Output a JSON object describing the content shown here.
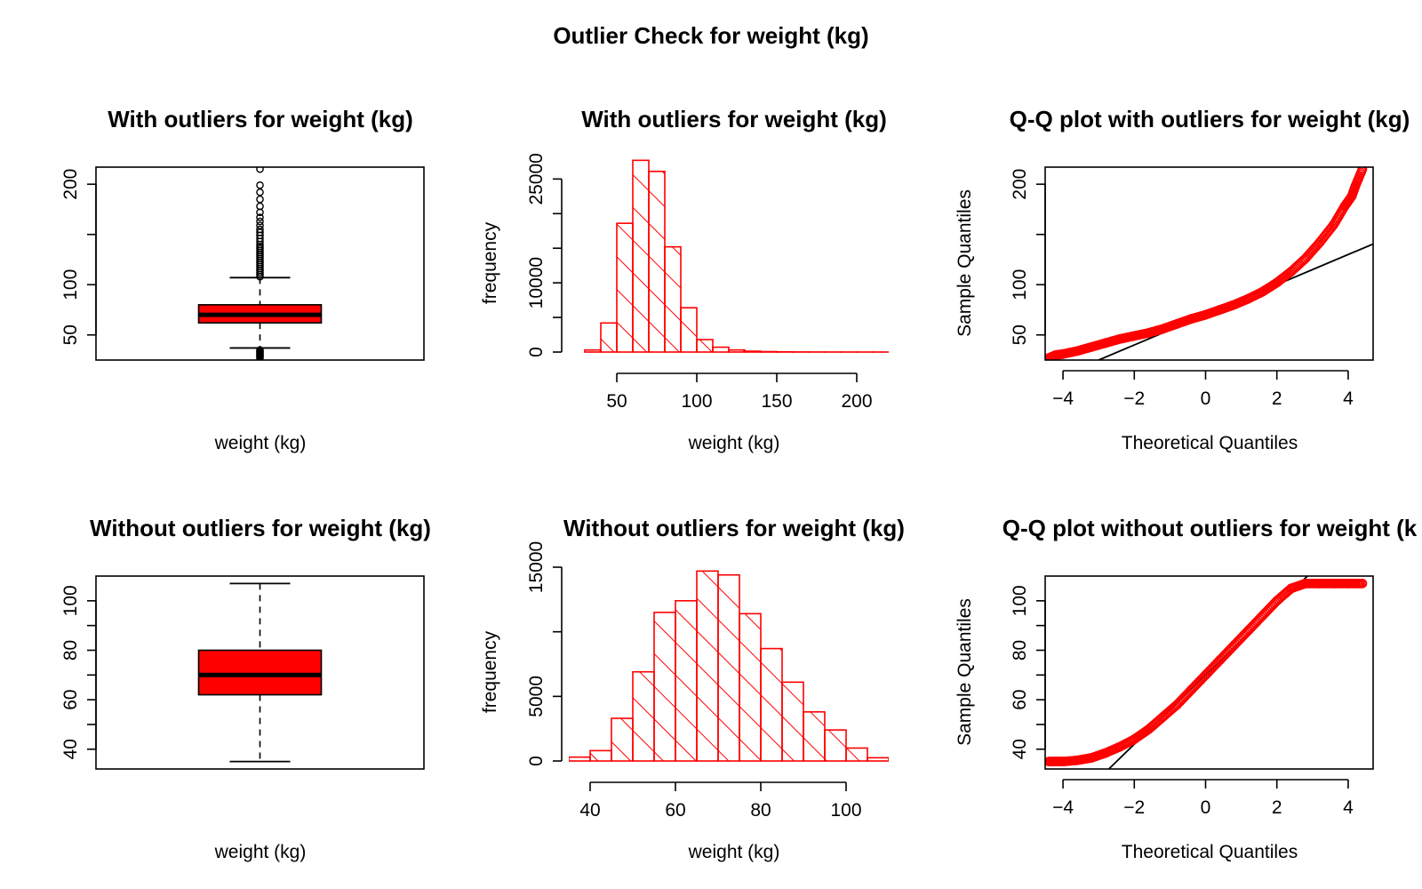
{
  "page_title": "Outlier Check for  weight (kg)",
  "colors": {
    "accent": "#ff0000",
    "line": "#000000",
    "background": "#ffffff"
  },
  "chart_data": [
    {
      "id": "box_with",
      "type": "boxplot",
      "title": "With outliers for weight (kg)",
      "xlabel": "weight (kg)",
      "ylabel": "",
      "ylim": [
        25,
        217
      ],
      "yticks": [
        50,
        100,
        150,
        200
      ],
      "ytick_labels": [
        "50",
        "100",
        "",
        "200"
      ],
      "stats": {
        "whisker_low": 37,
        "q1": 62,
        "median": 70,
        "q3": 80,
        "whisker_high": 107
      },
      "outliers_high": [
        108,
        110,
        112,
        114,
        116,
        118,
        120,
        122,
        124,
        126,
        128,
        130,
        132,
        134,
        136,
        138,
        140,
        143,
        146,
        149,
        152,
        155,
        159,
        163,
        167,
        172,
        178,
        185,
        192,
        199,
        215
      ],
      "outliers_low": [
        27,
        28,
        29,
        30,
        31,
        32,
        33,
        34,
        35
      ],
      "fill": "#ff0000"
    },
    {
      "id": "hist_with",
      "type": "bar",
      "subtype": "histogram",
      "title": "With outliers for weight (kg)",
      "xlabel": "weight (kg)",
      "ylabel": "frequency",
      "xlim": [
        20,
        220
      ],
      "ylim": [
        0,
        28000
      ],
      "xticks": [
        50,
        100,
        150,
        200
      ],
      "yticks": [
        0,
        5000,
        10000,
        15000,
        20000,
        25000
      ],
      "ytick_labels": [
        "0",
        "",
        "10000",
        "",
        "",
        "25000"
      ],
      "bin_edges": [
        30,
        40,
        50,
        60,
        70,
        80,
        90,
        100,
        110,
        120,
        130,
        140,
        150,
        160,
        170,
        180,
        190,
        200,
        210,
        220
      ],
      "values": [
        300,
        4200,
        18600,
        27700,
        26100,
        15200,
        6400,
        1800,
        700,
        300,
        120,
        60,
        30,
        15,
        8,
        5,
        3,
        2,
        1
      ],
      "fill": "hatched"
    },
    {
      "id": "qq_with",
      "type": "scatter",
      "subtype": "qq",
      "title": "Q-Q plot with outliers for weight (kg)",
      "xlabel": "Theoretical Quantiles",
      "ylabel": "Sample Quantiles",
      "xlim": [
        -4.5,
        4.7
      ],
      "ylim": [
        25,
        217
      ],
      "xticks": [
        -4,
        -2,
        0,
        2,
        4
      ],
      "xtick_labels": [
        "−4",
        "−2",
        "0",
        "2",
        "4"
      ],
      "yticks": [
        50,
        100,
        150,
        200
      ],
      "ytick_labels": [
        "50",
        "100",
        "",
        "200"
      ],
      "points": [
        [
          -4.4,
          27
        ],
        [
          -4.2,
          30
        ],
        [
          -4.0,
          31
        ],
        [
          -3.6,
          34
        ],
        [
          -3.2,
          38
        ],
        [
          -2.8,
          42
        ],
        [
          -2.4,
          46
        ],
        [
          -2.0,
          49
        ],
        [
          -1.6,
          52
        ],
        [
          -1.2,
          56
        ],
        [
          -0.8,
          61
        ],
        [
          -0.4,
          66
        ],
        [
          0.0,
          70
        ],
        [
          0.4,
          75
        ],
        [
          0.8,
          80
        ],
        [
          1.2,
          86
        ],
        [
          1.6,
          93
        ],
        [
          2.0,
          102
        ],
        [
          2.4,
          113
        ],
        [
          2.8,
          126
        ],
        [
          3.2,
          142
        ],
        [
          3.6,
          160
        ],
        [
          3.9,
          178
        ],
        [
          4.1,
          188
        ],
        [
          4.2,
          198
        ],
        [
          4.4,
          215
        ]
      ],
      "ref_line": {
        "intercept": 70,
        "slope": 15
      }
    },
    {
      "id": "box_without",
      "type": "boxplot",
      "title": "Without outliers for weight (kg)",
      "xlabel": "weight (kg)",
      "ylabel": "",
      "ylim": [
        32,
        110
      ],
      "yticks": [
        40,
        50,
        60,
        70,
        80,
        90,
        100
      ],
      "ytick_labels": [
        "40",
        "",
        "60",
        "",
        "80",
        "",
        "100"
      ],
      "stats": {
        "whisker_low": 35,
        "q1": 62,
        "median": 70,
        "q3": 80,
        "whisker_high": 107
      },
      "outliers_high": [],
      "outliers_low": [],
      "fill": "#ff0000"
    },
    {
      "id": "hist_without",
      "type": "bar",
      "subtype": "histogram",
      "title": "Without outliers for weight (kg)",
      "xlabel": "weight (kg)",
      "ylabel": "frequency",
      "xlim": [
        35,
        110
      ],
      "ylim": [
        0,
        15000
      ],
      "xticks": [
        40,
        60,
        80,
        100
      ],
      "yticks": [
        0,
        5000,
        10000,
        15000
      ],
      "ytick_labels": [
        "0",
        "5000",
        "",
        "15000"
      ],
      "bin_edges": [
        35,
        40,
        45,
        50,
        55,
        60,
        65,
        70,
        75,
        80,
        85,
        90,
        95,
        100,
        105,
        110
      ],
      "values": [
        300,
        800,
        3300,
        6900,
        11500,
        12400,
        14700,
        14400,
        11400,
        8700,
        6100,
        3800,
        2400,
        1000,
        250
      ],
      "fill": "hatched"
    },
    {
      "id": "qq_without",
      "type": "scatter",
      "subtype": "qq",
      "title": "Q-Q plot without outliers for weight (k",
      "xlabel": "Theoretical Quantiles",
      "ylabel": "Sample Quantiles",
      "xlim": [
        -4.5,
        4.7
      ],
      "ylim": [
        32,
        110
      ],
      "xticks": [
        -4,
        -2,
        0,
        2,
        4
      ],
      "xtick_labels": [
        "−4",
        "−2",
        "0",
        "2",
        "4"
      ],
      "yticks": [
        40,
        50,
        60,
        70,
        80,
        90,
        100
      ],
      "ytick_labels": [
        "40",
        "",
        "60",
        "",
        "80",
        "",
        "100"
      ],
      "points": [
        [
          -4.4,
          35
        ],
        [
          -4.2,
          35
        ],
        [
          -4.0,
          35
        ],
        [
          -3.6,
          35.5
        ],
        [
          -3.2,
          36.5
        ],
        [
          -2.8,
          38.5
        ],
        [
          -2.4,
          41
        ],
        [
          -2.0,
          44
        ],
        [
          -1.6,
          48
        ],
        [
          -1.2,
          53
        ],
        [
          -0.8,
          58
        ],
        [
          -0.4,
          64
        ],
        [
          0.0,
          70
        ],
        [
          0.4,
          76
        ],
        [
          0.8,
          82
        ],
        [
          1.2,
          88
        ],
        [
          1.6,
          94
        ],
        [
          2.0,
          100
        ],
        [
          2.4,
          105
        ],
        [
          2.8,
          107
        ],
        [
          3.2,
          107
        ],
        [
          3.6,
          107
        ],
        [
          4.0,
          107
        ],
        [
          4.4,
          107
        ]
      ],
      "ref_line": {
        "intercept": 70,
        "slope": 14
      }
    }
  ]
}
